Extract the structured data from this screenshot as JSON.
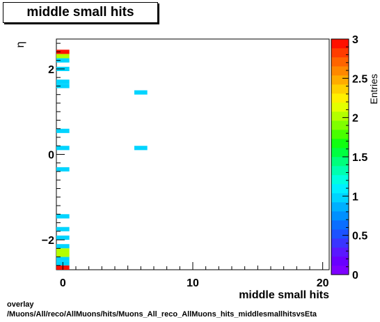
{
  "title": "middle small hits",
  "footer": {
    "line1": "overlay",
    "line2": "/Muons/All/reco/AllMuons/hits/Muons_All_reco_AllMuons_hits_middlesmallhitsvsEta"
  },
  "chart_data": {
    "type": "heatmap",
    "title": "middle small hits",
    "xlabel": "middle small hits",
    "ylabel": "η",
    "zlabel": "Entries",
    "xlim": [
      -0.5,
      20.5
    ],
    "ylim": [
      -2.7,
      2.7
    ],
    "zlim": [
      0,
      3
    ],
    "x_ticks": [
      "0",
      "10",
      "20"
    ],
    "y_ticks": [
      "−2",
      "0",
      "2"
    ],
    "z_ticks": [
      "0",
      "0.5",
      "1",
      "1.5",
      "2",
      "2.5",
      "3"
    ],
    "cells": [
      {
        "x": 0,
        "y": 2.4,
        "z": 3
      },
      {
        "x": 0,
        "y": 2.3,
        "z": 2
      },
      {
        "x": 0,
        "y": 2.2,
        "z": 1
      },
      {
        "x": 0,
        "y": 2.0,
        "z": 1
      },
      {
        "x": 0,
        "y": 1.7,
        "z": 1
      },
      {
        "x": 0,
        "y": 1.6,
        "z": 1
      },
      {
        "x": 0,
        "y": 0.55,
        "z": 1
      },
      {
        "x": 0,
        "y": 0.15,
        "z": 1
      },
      {
        "x": 0,
        "y": -0.35,
        "z": 1
      },
      {
        "x": 0,
        "y": -1.45,
        "z": 1
      },
      {
        "x": 0,
        "y": -1.75,
        "z": 1
      },
      {
        "x": 0,
        "y": -1.95,
        "z": 1
      },
      {
        "x": 0,
        "y": -2.15,
        "z": 1
      },
      {
        "x": 0,
        "y": -2.25,
        "z": 2
      },
      {
        "x": 0,
        "y": -2.35,
        "z": 2
      },
      {
        "x": 0,
        "y": -2.45,
        "z": 1
      },
      {
        "x": 0,
        "y": -2.55,
        "z": 1
      },
      {
        "x": 0,
        "y": -2.65,
        "z": 3
      },
      {
        "x": 6,
        "y": 1.45,
        "z": 1
      },
      {
        "x": 6,
        "y": 0.15,
        "z": 1
      }
    ],
    "x_bin_width": 1,
    "y_bin_width": 0.1,
    "palette": [
      "#7e00ff",
      "#6a00ff",
      "#5a18ff",
      "#3a34ff",
      "#1c52ff",
      "#0a6eff",
      "#0090ff",
      "#00b0ff",
      "#00d4ff",
      "#00f0ff",
      "#00ffe0",
      "#00ffb0",
      "#00ff7c",
      "#00ff40",
      "#10ff10",
      "#48ff00",
      "#80ff00",
      "#b4ff00",
      "#e4ff00",
      "#fff000",
      "#ffd000",
      "#ffac00",
      "#ff8800",
      "#ff6400",
      "#ff3c00",
      "#ff1000"
    ],
    "grid": false,
    "legend": "colorbar-right"
  }
}
